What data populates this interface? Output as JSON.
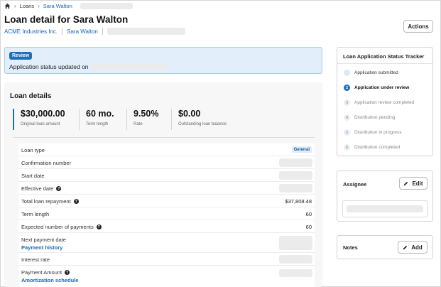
{
  "breadcrumb": {
    "home_icon": "home-icon",
    "items": [
      "Loans",
      "Sara Walton"
    ]
  },
  "page": {
    "title": "Loan detail for Sara Walton",
    "company": "ACME Industries Inc.",
    "borrower": "Sara Walton",
    "actions_label": "Actions"
  },
  "banner": {
    "badge": "Review",
    "message": "Application status updated on"
  },
  "loan": {
    "heading": "Loan details",
    "stats": [
      {
        "value": "$30,000.00",
        "label": "Original loan amount"
      },
      {
        "value": "60 mo.",
        "label": "Term length"
      },
      {
        "value": "9.50%",
        "label": "Rate"
      },
      {
        "value": "$0.00",
        "label": "Outstanding loan balance"
      }
    ],
    "rows": {
      "loan_type": {
        "label": "Loan type",
        "tag": "General"
      },
      "confirmation": {
        "label": "Confirmation number"
      },
      "start_date": {
        "label": "Start date"
      },
      "effective_date": {
        "label": "Effective date"
      },
      "total_repayment": {
        "label": "Total loan repayment",
        "value": "$37,808.48"
      },
      "term_length": {
        "label": "Term length",
        "value": "60"
      },
      "expected_payments": {
        "label": "Expected number of payments",
        "value": "60"
      },
      "next_payment": {
        "label": "Next payment date",
        "link": "Payment history"
      },
      "interest_rate": {
        "label": "Interest rate"
      },
      "payment_amount": {
        "label": "Payment Amount",
        "link": "Amortization schedule"
      }
    },
    "info_glyph": "?"
  },
  "tracker": {
    "title": "Loan Application Status Tracker",
    "steps": [
      {
        "num": "",
        "label": "Application submitted",
        "state": "done"
      },
      {
        "num": "2",
        "label": "Application under review",
        "state": "active"
      },
      {
        "num": "3",
        "label": "Application review completed",
        "state": "pending"
      },
      {
        "num": "4",
        "label": "Distribution pending",
        "state": "pending"
      },
      {
        "num": "5",
        "label": "Distribution in progress",
        "state": "pending"
      },
      {
        "num": "6",
        "label": "Distribution completed",
        "state": "pending"
      }
    ]
  },
  "assignee": {
    "title": "Assignee",
    "edit_label": "Edit"
  },
  "notes": {
    "title": "Notes",
    "add_label": "Add"
  },
  "colors": {
    "accent": "#1f6fb8",
    "link": "#1a66b3",
    "banner_bg": "#e2effa"
  }
}
